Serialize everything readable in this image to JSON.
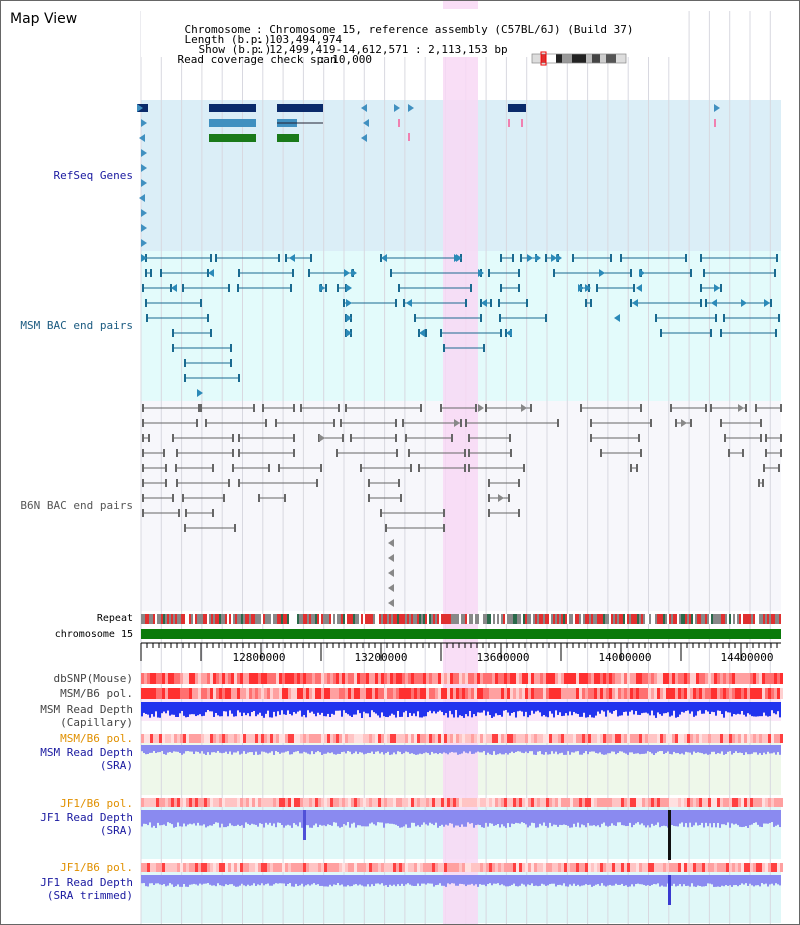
{
  "title": "Map View",
  "info": {
    "chromosome_key": "Chromosome",
    "chromosome_val": ": Chromosome 15, reference assembly (C57BL/6J) (Build 37)",
    "length_key": "Length (b.p.)",
    "length_val": ": 103,494,974",
    "show_key": "Show (b.p.)",
    "show_val": ": 12,499,419-14,612,571 : 2,113,153 bp",
    "span_key": "Read coverage check span",
    "span_val": ": 10,000"
  },
  "tracks": {
    "refseq": "RefSeq Genes",
    "msm_bac": "MSM BAC end pairs",
    "b6n_bac": "B6N BAC end pairs",
    "repeat": "Repeat",
    "chromosome": "chromosome 15",
    "dbsnp": "dbSNP(Mouse)",
    "msm_b6_pol_1": "MSM/B6 pol.",
    "msm_depth_cap_1": "MSM Read Depth",
    "msm_depth_cap_2": "(Capillary)",
    "msm_b6_pol_2": "MSM/B6 pol.",
    "msm_depth_sra_1": "MSM Read Depth",
    "msm_depth_sra_2": "(SRA)",
    "jf1_b6_pol_1": "JF1/B6 pol.",
    "jf1_depth_sra_1": "JF1 Read Depth",
    "jf1_depth_sra_2": "(SRA)",
    "jf1_b6_pol_2": "JF1/B6 pol.",
    "jf1_depth_trim_1": "JF1 Read Depth",
    "jf1_depth_trim_2": "(SRA trimmed)"
  },
  "axis": {
    "ticks": [
      "12800000",
      "13200000",
      "13600000",
      "14000000",
      "14400000"
    ]
  },
  "colors": {
    "refseq_bg": "#dbeef7",
    "msm_bg": "#e3fbfb",
    "b6n_bg": "#f7f7fb",
    "highlight": "#f8d8f4",
    "gene_dark": "#0a2a6a",
    "gene_mid": "#4090c0",
    "gene_green": "#1a7a1a",
    "msm_line": "#1a6a90",
    "b6n_line": "#666666",
    "chrom_bar": "#0a7a0a",
    "depth_blue": "#2233ee",
    "depth_light": "#8a8af0",
    "snp_red": "#ff5050"
  }
}
